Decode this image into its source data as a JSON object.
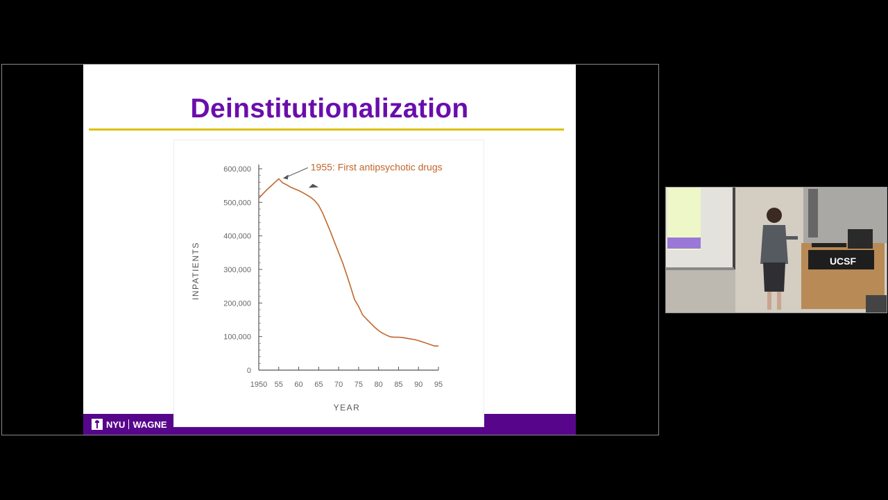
{
  "slide": {
    "title": "Deinstitutionalization",
    "footer_brand_left": "NYU",
    "footer_brand_right": "WAGNE"
  },
  "webcam": {
    "podium_logo": "UCSF"
  },
  "chart_data": {
    "type": "line",
    "title": "",
    "xlabel": "YEAR",
    "ylabel": "INPATIENTS",
    "x_ticks": [
      "1950",
      "55",
      "60",
      "65",
      "70",
      "75",
      "80",
      "85",
      "90",
      "95"
    ],
    "y_ticks": [
      "0",
      "100,000",
      "200,000",
      "300,000",
      "400,000",
      "500,000",
      "600,000"
    ],
    "xlim": [
      1950,
      1995
    ],
    "ylim": [
      0,
      600000
    ],
    "grid": false,
    "series": [
      {
        "color": "#c0672b",
        "x": [
          1950,
          1951,
          1952,
          1953,
          1954,
          1955,
          1956,
          1957,
          1958,
          1959,
          1960,
          1961,
          1962,
          1963,
          1964,
          1965,
          1966,
          1967,
          1968,
          1969,
          1970,
          1971,
          1972,
          1973,
          1974,
          1975,
          1976,
          1977,
          1978,
          1979,
          1980,
          1981,
          1982,
          1983,
          1984,
          1985,
          1986,
          1987,
          1988,
          1989,
          1990,
          1991,
          1992,
          1993,
          1994,
          1995
        ],
        "y": [
          512000,
          525000,
          537000,
          548000,
          559000,
          570000,
          558000,
          552000,
          545000,
          540000,
          535000,
          529000,
          522000,
          515000,
          505000,
          491000,
          468000,
          440000,
          411000,
          380000,
          350000,
          320000,
          285000,
          248000,
          210000,
          190000,
          165000,
          152000,
          140000,
          128000,
          118000,
          110000,
          104000,
          99000,
          98000,
          98000,
          97000,
          95000,
          93000,
          91000,
          88000,
          84000,
          80000,
          76000,
          72000,
          72000
        ]
      }
    ],
    "annotations": [
      {
        "text": "1955: First antipsychotic drugs",
        "x": 1955,
        "y": 570000
      }
    ]
  }
}
